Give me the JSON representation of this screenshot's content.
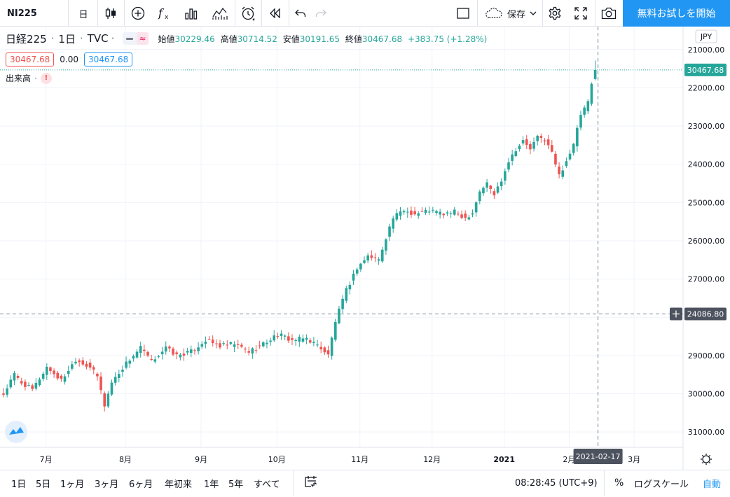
{
  "toolbar": {
    "symbol": "NI225",
    "interval": "日",
    "save_label": "保存",
    "cta_label": "無料お試しを開始"
  },
  "legend": {
    "title": "日経225",
    "interval": "1日",
    "source": "TVC",
    "open_label": "始値",
    "open": "30229.46",
    "high_label": "高値",
    "high": "30714.52",
    "low_label": "安値",
    "low": "30191.65",
    "close_label": "終値",
    "close": "30467.68",
    "change": "+383.75 (+1.28%)",
    "bid": "30467.68",
    "spread": "0.00",
    "ask": "30467.68",
    "volume_label": "出来高",
    "volume_badge": "!"
  },
  "price_axis": {
    "currency": "JPY",
    "ticks": [
      "31000.00",
      "30000.00",
      "29000.00",
      "28000.00",
      "27000.00",
      "26000.00",
      "25000.00",
      "24000.00",
      "23000.00",
      "22000.00",
      "21000.00"
    ],
    "last_price_label": "30467.68",
    "crosshair_price_label": "24086.80"
  },
  "time_axis": {
    "ticks": [
      "7月",
      "8月",
      "9月",
      "10月",
      "11月",
      "12月",
      "2021",
      "2月",
      "3月"
    ],
    "crosshair_date_label": "2021-02-17"
  },
  "bottom_bar": {
    "ranges": [
      "1日",
      "5日",
      "1ヶ月",
      "3ヶ月",
      "6ヶ月",
      "年初来",
      "1年",
      "5年",
      "すべて"
    ],
    "clock": "08:28:45 (UTC+9)",
    "percent_label": "%",
    "log_label": "ログスケール",
    "auto_label": "自動"
  },
  "colors": {
    "up": "#26a69a",
    "down": "#ef5350",
    "accent": "#2196f3"
  },
  "chart_data": {
    "type": "candlestick",
    "symbol": "日経225",
    "interval": "1日",
    "ylim": [
      20600,
      31600
    ],
    "y_ticks": [
      21000,
      22000,
      23000,
      24000,
      25000,
      26000,
      27000,
      28000,
      29000,
      30000,
      31000
    ],
    "x_ticks": [
      "7月",
      "8月",
      "9月",
      "10月",
      "11月",
      "12月",
      "2021",
      "2月",
      "3月"
    ],
    "close_anchors": [
      [
        0,
        21990
      ],
      [
        3,
        22500
      ],
      [
        5,
        22290
      ],
      [
        8,
        22100
      ],
      [
        12,
        22700
      ],
      [
        16,
        22350
      ],
      [
        20,
        22900
      ],
      [
        24,
        22700
      ],
      [
        26,
        22450
      ],
      [
        28,
        21700
      ],
      [
        30,
        22300
      ],
      [
        34,
        22800
      ],
      [
        38,
        23200
      ],
      [
        41,
        22850
      ],
      [
        45,
        23200
      ],
      [
        48,
        23000
      ],
      [
        52,
        23100
      ],
      [
        56,
        23400
      ],
      [
        60,
        23250
      ],
      [
        64,
        23300
      ],
      [
        68,
        23100
      ],
      [
        72,
        23300
      ],
      [
        76,
        23550
      ],
      [
        80,
        23400
      ],
      [
        84,
        23450
      ],
      [
        88,
        23200
      ],
      [
        90,
        23000
      ],
      [
        92,
        23900
      ],
      [
        95,
        24700
      ],
      [
        98,
        25300
      ],
      [
        101,
        25600
      ],
      [
        104,
        25500
      ],
      [
        106,
        26100
      ],
      [
        108,
        26600
      ],
      [
        111,
        26800
      ],
      [
        114,
        26700
      ],
      [
        118,
        26800
      ],
      [
        122,
        26700
      ],
      [
        125,
        26750
      ],
      [
        128,
        26600
      ],
      [
        130,
        26750
      ],
      [
        132,
        27300
      ],
      [
        134,
        27500
      ],
      [
        136,
        27200
      ],
      [
        138,
        27600
      ],
      [
        140,
        28100
      ],
      [
        142,
        28400
      ],
      [
        144,
        28600
      ],
      [
        146,
        28400
      ],
      [
        148,
        28700
      ],
      [
        150,
        28650
      ],
      [
        152,
        28300
      ],
      [
        154,
        27700
      ],
      [
        156,
        28100
      ],
      [
        158,
        28500
      ],
      [
        160,
        29300
      ],
      [
        162,
        29600
      ],
      [
        163,
        30084
      ],
      [
        164,
        30468
      ]
    ],
    "last_bar": {
      "open": 30229.46,
      "high": 30714.52,
      "low": 30191.65,
      "close": 30467.68
    },
    "crosshair": {
      "date": "2021-02-17",
      "price": 24086.8
    }
  }
}
